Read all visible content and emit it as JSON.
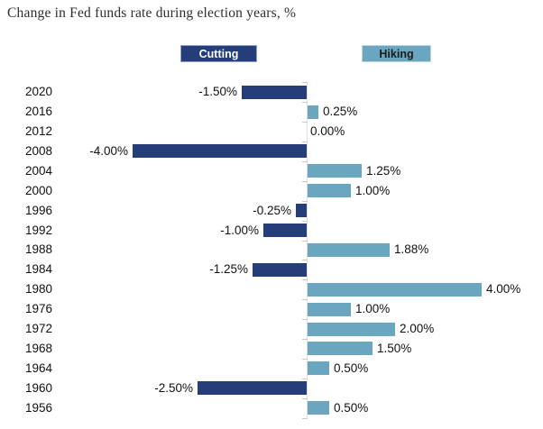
{
  "title": "Change in Fed funds rate during election years, %",
  "legend": {
    "cutting_label": "Cutting",
    "hiking_label": "Hiking"
  },
  "colors": {
    "cutting": "#253e7a",
    "hiking": "#6aa6c0",
    "legend_cutting_text": "#ffffff",
    "legend_hiking_text": "#1a1a1a",
    "legend_cutting_border": "#8fa3c8",
    "legend_hiking_border": "#bcd6e2",
    "axis_line": "#e0e0e0",
    "tick": "#c9c9c9",
    "title_text": "#2e2e2e",
    "label_text": "#111111"
  },
  "chart_data": {
    "type": "bar",
    "orientation": "horizontal",
    "title": "Change in Fed funds rate during election years, %",
    "xlabel": "",
    "ylabel": "",
    "xlim": [
      -4.5,
      4.5
    ],
    "grid": false,
    "legend_position": "top",
    "legend_entries": [
      "Cutting",
      "Hiking"
    ],
    "series_semantics": {
      "negative": "Cutting",
      "positive": "Hiking"
    },
    "categories": [
      "2020",
      "2016",
      "2012",
      "2008",
      "2004",
      "2000",
      "1996",
      "1992",
      "1988",
      "1984",
      "1980",
      "1976",
      "1972",
      "1968",
      "1964",
      "1960",
      "1956"
    ],
    "values": [
      -1.5,
      0.25,
      0.0,
      -4.0,
      1.25,
      1.0,
      -0.25,
      -1.0,
      1.88,
      -1.25,
      4.0,
      1.0,
      2.0,
      1.5,
      0.5,
      -2.5,
      0.5
    ],
    "value_labels": [
      "-1.50%",
      "0.25%",
      "0.00%",
      "-4.00%",
      "1.25%",
      "1.00%",
      "-0.25%",
      "-1.00%",
      "1.88%",
      "-1.25%",
      "4.00%",
      "1.00%",
      "2.00%",
      "1.50%",
      "0.50%",
      "-2.50%",
      "0.50%"
    ]
  }
}
